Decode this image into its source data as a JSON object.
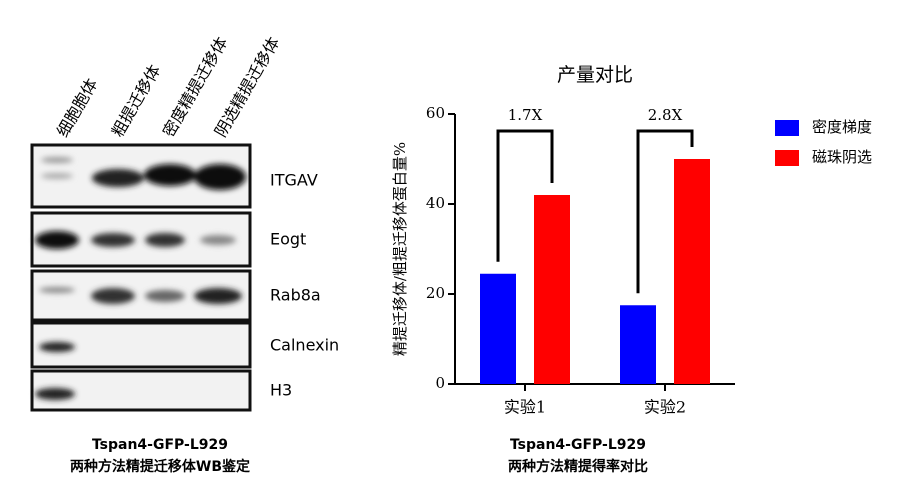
{
  "blot": {
    "lanes": [
      "细胞胞体",
      "粗提迁移体",
      "密度精提迁移体",
      "阴选精提迁移体"
    ],
    "proteins": [
      "ITGAV",
      "Eogt",
      "Rab8a",
      "Calnexin",
      "H3"
    ],
    "caption": [
      "Tspan4-GFP-L929",
      "两种方法精提迁移体WB鉴定"
    ]
  },
  "chart_data": {
    "type": "bar",
    "title": "产量对比",
    "y_label": "精提迁移体/粗提迁移体蛋白量%",
    "categories": [
      "实验1",
      "实验2"
    ],
    "series": [
      {
        "name": "密度梯度",
        "color": "#0000ff",
        "values": [
          24.5,
          17.5
        ]
      },
      {
        "name": "磁珠阴选",
        "color": "#ff0000",
        "values": [
          42,
          50
        ]
      }
    ],
    "annotations": [
      "1.7X",
      "2.8X"
    ],
    "ylim": [
      0,
      60
    ],
    "yticks": [
      0,
      20,
      40,
      60
    ],
    "grid": false,
    "legend": "right",
    "caption": [
      "Tspan4-GFP-L929",
      "两种方法精提得率对比"
    ]
  }
}
